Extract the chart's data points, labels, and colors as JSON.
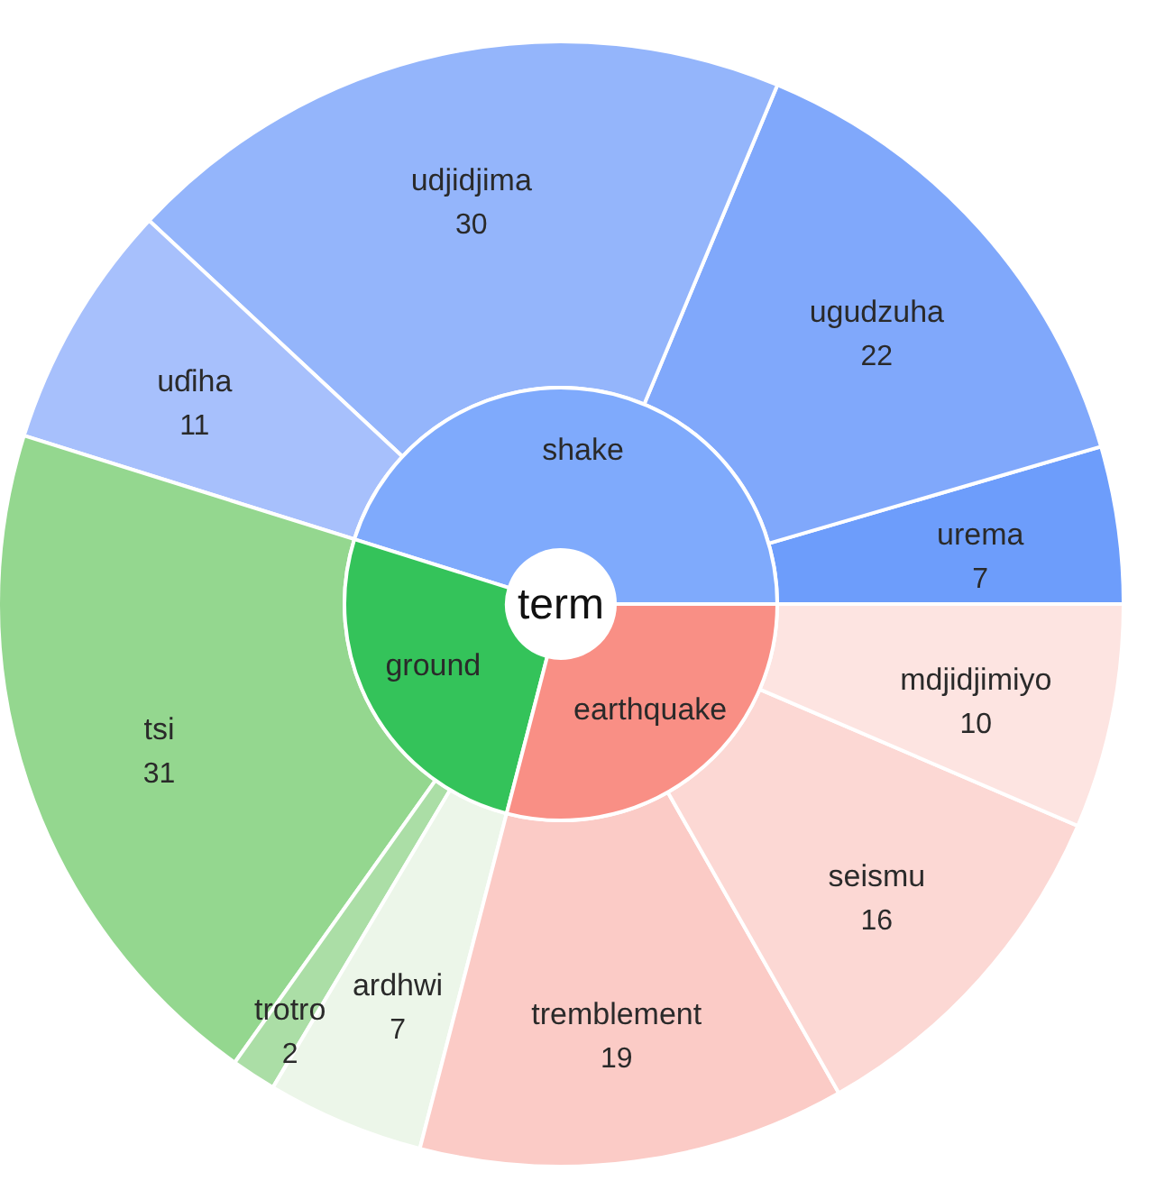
{
  "chart_data": {
    "type": "donut",
    "title": "term",
    "categories": [
      "urema",
      "ugudzuha",
      "udjidjima",
      "uɗiha",
      "tsi",
      "trotro",
      "ardhwi",
      "tremblement",
      "seismu",
      "mdjidjimiyo"
    ],
    "annotations": [
      "shake",
      "ground",
      "earthquake"
    ],
    "series": [
      {
        "values": [
          7,
          22,
          30,
          11,
          31,
          2,
          7,
          19,
          16,
          10
        ],
        "value_labels": [
          "7",
          "22",
          "30",
          "11",
          "31",
          "2",
          "7",
          "19",
          "16",
          "10"
        ],
        "colors": [
          "#6d9dfb",
          "#80a8fb",
          "#94b5fb",
          "#a7c0fc",
          "#94d78f",
          "#abdea6",
          "#ecf6e9",
          "#fbcbc6",
          "#fcd8d4",
          "#fde4e1"
        ]
      },
      {
        "values": [
          45.16,
          null,
          null,
          null,
          25.81,
          null,
          null,
          29.03,
          null,
          null
        ],
        "colors": [
          "#7faafc",
          null,
          null,
          null,
          "#34c35a",
          null,
          null,
          "#f98f85",
          null,
          null
        ]
      }
    ]
  }
}
